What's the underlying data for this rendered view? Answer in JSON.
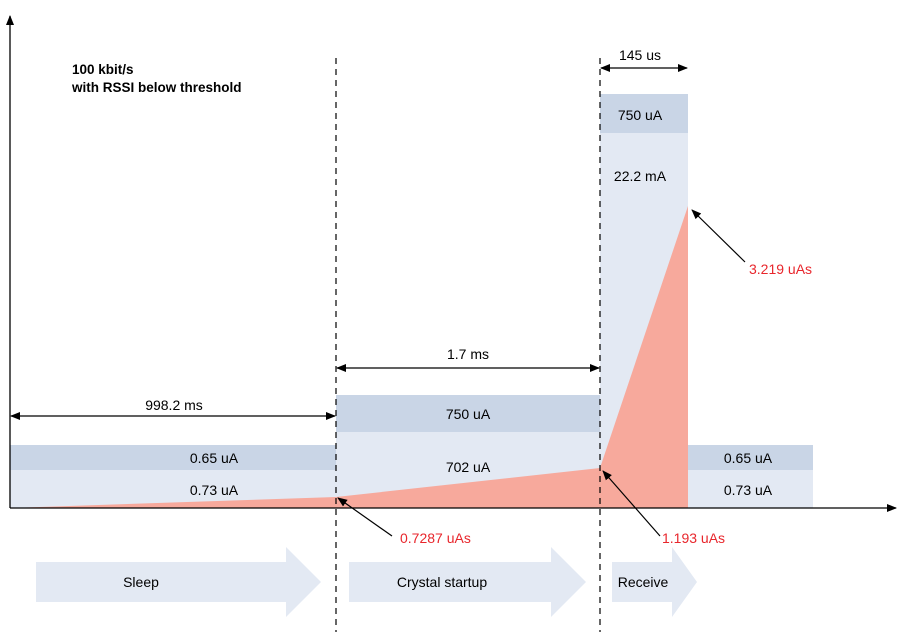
{
  "title_lines": [
    "100 kbit/s",
    "with RSSI below threshold"
  ],
  "durations": {
    "sleep": "998.2 ms",
    "crystal": "1.7 ms",
    "receive": "145 us"
  },
  "currents": {
    "sleep_top": "0.65 uA",
    "sleep_base": "0.73 uA",
    "crystal_top": "750 uA",
    "crystal_base": "702 uA",
    "receive_top": "750 uA",
    "receive_base": "22.2 mA",
    "after_top": "0.65 uA",
    "after_base": "0.73 uA"
  },
  "charges": {
    "sleep": "0.7287 uAs",
    "crystal": "1.193 uAs",
    "receive": "3.219 uAs"
  },
  "phases": [
    "Sleep",
    "Crystal startup",
    "Receive"
  ],
  "colors": {
    "band_dark": "#c9d5e6",
    "band_light": "#e3e9f3",
    "charge_fill": "#f7a99c",
    "charge_text": "#e8262c",
    "arrow_fill": "#e3e9f3"
  }
}
